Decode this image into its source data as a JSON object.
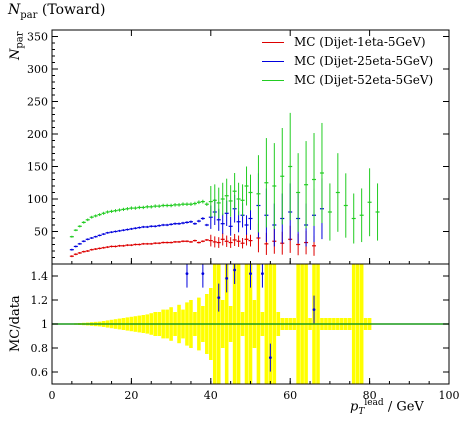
{
  "title_var": "N",
  "title_sub": "par",
  "title_rest": "(Toward)",
  "main_ylabel": {
    "var": "N",
    "sub": "par"
  },
  "ratio_ylabel": "MC/data",
  "xlabel": {
    "var": "p",
    "sub": "T",
    "sup": "lead",
    "unit": "/ GeV"
  },
  "chart_data": [
    {
      "type": "scatter",
      "panel": "main",
      "xlim": [
        0,
        100
      ],
      "ylim": [
        0,
        360
      ],
      "yticks": [
        0,
        50,
        100,
        150,
        200,
        250,
        300,
        350
      ],
      "legend_position": "top-right",
      "series": [
        {
          "name": "MC (Dijet-1eta-5GeV)",
          "color": "#dd0000",
          "x": [
            5,
            6,
            7,
            8,
            9,
            10,
            11,
            12,
            13,
            14,
            15,
            16,
            17,
            18,
            19,
            20,
            21,
            22,
            23,
            24,
            25,
            26,
            27,
            28,
            29,
            30,
            31,
            32,
            33,
            34,
            35,
            36,
            37,
            38,
            39,
            40,
            41,
            42,
            43,
            44,
            45,
            46,
            47,
            48,
            49,
            50,
            52,
            54,
            56,
            58,
            60,
            62,
            64,
            66
          ],
          "y": [
            12,
            15,
            17,
            19,
            20,
            22,
            23,
            24,
            25,
            26,
            27,
            27,
            28,
            28,
            29,
            29,
            30,
            30,
            31,
            31,
            31,
            32,
            32,
            33,
            33,
            33,
            34,
            34,
            35,
            35,
            34,
            36,
            33,
            35,
            37,
            36,
            34,
            33,
            38,
            35,
            33,
            37,
            35,
            32,
            38,
            36,
            40,
            31,
            35,
            32,
            38,
            30,
            33,
            28
          ]
        },
        {
          "name": "MC (Dijet-25eta-5GeV)",
          "color": "#0000dd",
          "x": [
            5,
            6,
            7,
            8,
            9,
            10,
            11,
            12,
            13,
            14,
            15,
            16,
            17,
            18,
            19,
            20,
            21,
            22,
            23,
            24,
            25,
            26,
            27,
            28,
            29,
            30,
            31,
            32,
            33,
            34,
            35,
            36,
            37,
            38,
            39,
            40,
            41,
            42,
            43,
            44,
            45,
            46,
            47,
            48,
            49,
            50,
            52,
            54,
            56,
            58,
            60,
            62,
            64,
            66,
            68
          ],
          "y": [
            22,
            27,
            31,
            35,
            38,
            40,
            42,
            44,
            46,
            48,
            49,
            50,
            51,
            52,
            53,
            54,
            55,
            56,
            57,
            57,
            58,
            58,
            59,
            60,
            60,
            61,
            62,
            62,
            63,
            64,
            65,
            62,
            66,
            70,
            60,
            72,
            80,
            68,
            62,
            78,
            58,
            85,
            65,
            75,
            60,
            70,
            90,
            75,
            60,
            70,
            80,
            70,
            60,
            75,
            85
          ]
        },
        {
          "name": "MC (Dijet-52eta-5GeV)",
          "color": "#22cc22",
          "x": [
            5,
            6,
            7,
            8,
            9,
            10,
            11,
            12,
            13,
            14,
            15,
            16,
            17,
            18,
            19,
            20,
            21,
            22,
            23,
            24,
            25,
            26,
            27,
            28,
            29,
            30,
            31,
            32,
            33,
            34,
            35,
            36,
            37,
            38,
            39,
            40,
            41,
            42,
            43,
            44,
            45,
            46,
            47,
            48,
            49,
            50,
            52,
            54,
            56,
            58,
            60,
            62,
            64,
            66,
            68,
            70,
            72,
            74,
            76,
            78,
            80,
            82
          ],
          "y": [
            42,
            52,
            58,
            64,
            68,
            72,
            74,
            76,
            78,
            80,
            81,
            82,
            83,
            84,
            85,
            86,
            86,
            87,
            87,
            88,
            88,
            89,
            89,
            90,
            90,
            90,
            91,
            91,
            92,
            92,
            92,
            93,
            95,
            96,
            92,
            96,
            98,
            94,
            100,
            105,
            97,
            112,
            100,
            98,
            120,
            110,
            108,
            125,
            120,
            135,
            150,
            110,
            122,
            130,
            140,
            80,
            110,
            90,
            70,
            75,
            95,
            80
          ]
        }
      ]
    },
    {
      "type": "scatter",
      "panel": "ratio",
      "xlim": [
        0,
        100
      ],
      "ylim": [
        0.5,
        1.5
      ],
      "yticks": [
        0.6,
        0.8,
        1,
        1.2,
        1.4
      ],
      "xticks": [
        0,
        20,
        40,
        60,
        80,
        100
      ],
      "reference_line": 1,
      "band_color": "#ffff00",
      "band_x": [
        5,
        6,
        7,
        8,
        9,
        10,
        11,
        12,
        13,
        14,
        15,
        16,
        17,
        18,
        19,
        20,
        21,
        22,
        23,
        24,
        25,
        26,
        27,
        28,
        29,
        30,
        31,
        32,
        33,
        34,
        35,
        36,
        37,
        38,
        39,
        40,
        41,
        42,
        43,
        44,
        45,
        46,
        47,
        48,
        49,
        50,
        51,
        52,
        53,
        54,
        55,
        56,
        57,
        58,
        59,
        60,
        61,
        62,
        63,
        64,
        65,
        66,
        67,
        68,
        69,
        70,
        71,
        72,
        73,
        74,
        75,
        76,
        77,
        78,
        79,
        80
      ],
      "band_halfwidth": [
        0.004,
        0.006,
        0.008,
        0.01,
        0.012,
        0.015,
        0.018,
        0.02,
        0.025,
        0.03,
        0.035,
        0.04,
        0.045,
        0.05,
        0.055,
        0.06,
        0.065,
        0.07,
        0.075,
        0.08,
        0.09,
        0.1,
        0.1,
        0.12,
        0.12,
        0.14,
        0.1,
        0.16,
        0.12,
        0.18,
        0.2,
        0.1,
        0.22,
        0.15,
        0.25,
        0.3,
        0.6,
        0.5,
        0.2,
        0.6,
        0.15,
        0.6,
        0.6,
        0.1,
        0.6,
        0.6,
        0.2,
        0.6,
        0.1,
        0.6,
        0.6,
        0.6,
        0.1,
        0.05,
        0.05,
        0.05,
        0.05,
        0.6,
        0.6,
        0.6,
        0.05,
        0.6,
        0.6,
        0.05,
        0.05,
        0.05,
        0.05,
        0.05,
        0.05,
        0.05,
        0.05,
        0.6,
        0.6,
        0.6,
        0.05,
        0.05
      ],
      "blue_points": {
        "x": [
          34,
          38,
          42,
          44,
          46,
          50,
          53,
          55,
          66
        ],
        "y": [
          1.42,
          1.42,
          1.22,
          1.38,
          1.45,
          1.42,
          1.42,
          0.72,
          1.12
        ]
      }
    }
  ]
}
